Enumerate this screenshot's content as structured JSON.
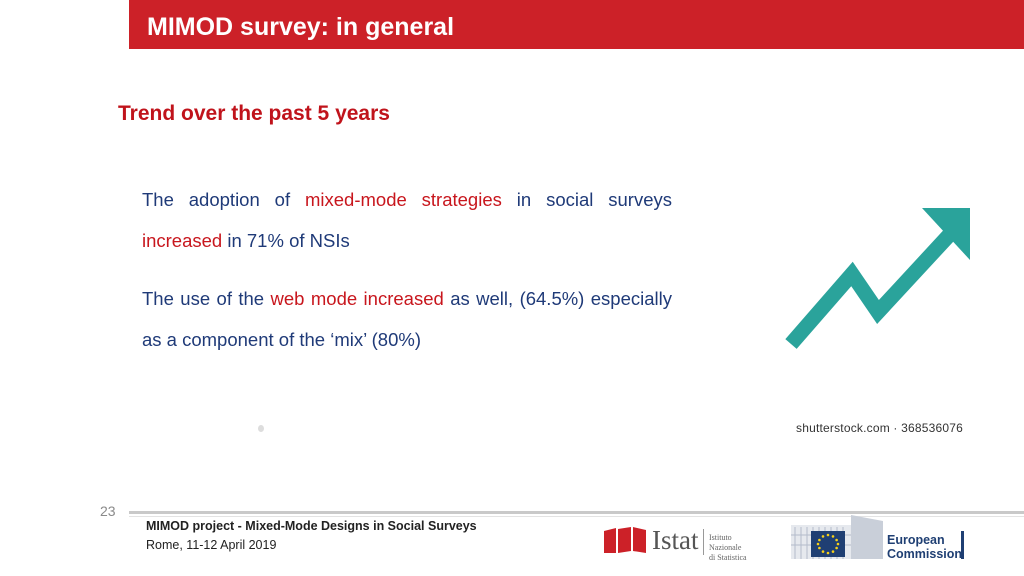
{
  "header": {
    "title": "MIMOD survey: in general"
  },
  "section": {
    "subtitle": "Trend over the past 5 years"
  },
  "paragraphs": {
    "p1": {
      "t1": "The adoption of ",
      "h1": "mixed-mode strategies",
      "t2": " in social surveys ",
      "h2": "increased",
      "t3": " in 71% of NSIs"
    },
    "p2": {
      "t1": "The use of the ",
      "h1": "web mode increased",
      "t2": " as well, (64.5%) especially as a component of the ‘mix’ (80%)"
    }
  },
  "image": {
    "icon": "trend-up-arrow-icon",
    "arrow_color": "#2aa39b",
    "credit": "shutterstock.com · 368536076"
  },
  "footer": {
    "page_number": "23",
    "project": "MIMOD project - Mixed-Mode Designs in Social Surveys",
    "date": "Rome, 11-12 April 2019",
    "istat_word": "Istat",
    "istat_sub_line1": "Istituto Nazionale",
    "istat_sub_line2": "di Statistica",
    "ec_line1": "European",
    "ec_line2": "Commission"
  },
  "colors": {
    "title_bar": "#cc2128",
    "subtitle": "#c0131b",
    "body_text": "#1f3a78",
    "highlight": "#c8161d",
    "eu_blue": "#1f3f73",
    "eu_star": "#f7d117"
  }
}
